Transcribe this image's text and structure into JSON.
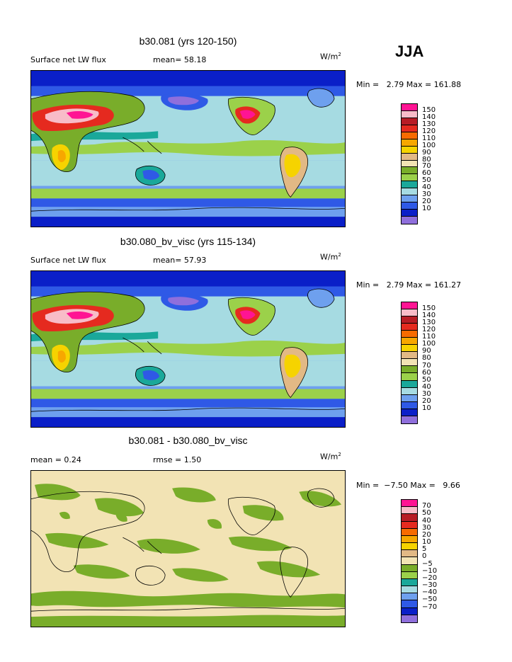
{
  "season": "JJA",
  "units_base": "W/m",
  "units_exp": "2",
  "colors": [
    "#8f6fdc",
    "#0a1fc8",
    "#2f59e6",
    "#6ea0ee",
    "#a6dbe2",
    "#1aa89a",
    "#9bd14a",
    "#79ad2a",
    "#f2e3b4",
    "#e2b985",
    "#f6d300",
    "#f7a700",
    "#f76b00",
    "#e52a1f",
    "#b71c25",
    "#f8bcc8",
    "#ff1493"
  ],
  "panels": [
    {
      "title": "b30.081 (yrs 120-150)",
      "label_left": "Surface net LW flux",
      "stat1": "mean=  58.18",
      "stat2": "",
      "minmax": "Min =   2.79 Max = 161.88",
      "ticks": [
        "150",
        "140",
        "130",
        "120",
        "110",
        "100",
        "90",
        "80",
        "70",
        "60",
        "50",
        "40",
        "30",
        "20",
        "10"
      ]
    },
    {
      "title": "b30.080_bv_visc (yrs 115-134)",
      "label_left": "Surface net LW flux",
      "stat1": "mean=  57.93",
      "stat2": "",
      "minmax": "Min =   2.79 Max = 161.27",
      "ticks": [
        "150",
        "140",
        "130",
        "120",
        "110",
        "100",
        "90",
        "80",
        "70",
        "60",
        "50",
        "40",
        "30",
        "20",
        "10"
      ]
    },
    {
      "title": "b30.081 - b30.080_bv_visc",
      "label_left": "mean =   0.24",
      "stat1": "rmse =   1.50",
      "stat2": "",
      "minmax": "Min =  −7.50 Max =   9.66",
      "ticks": [
        "70",
        "50",
        "40",
        "30",
        "20",
        "10",
        "5",
        "0",
        "−5",
        "−10",
        "−20",
        "−30",
        "−40",
        "−50",
        "−70"
      ]
    }
  ]
}
